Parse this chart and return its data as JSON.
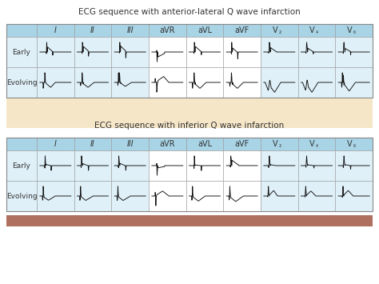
{
  "title1": "ECG sequence with anterior-lateral Q wave infarction",
  "title2": "ECG sequence with inferior Q wave infarction",
  "col_headers": [
    "I",
    "II",
    "III",
    "aVR",
    "aVL",
    "aVF",
    "V₂",
    "V₄",
    "V₆"
  ],
  "row_headers1": [
    "Early",
    "Evolving"
  ],
  "row_headers2": [
    "Early",
    "Evolving"
  ],
  "bg_color": "#ffffff",
  "header_bg": "#a8d4e6",
  "cell_bg_light": "#dff0f8",
  "cell_bg_white": "#fefefe",
  "tan_bg": "#f5e6c8",
  "brown_bar": "#b07060",
  "border_color": "#888888",
  "text_color": "#333333",
  "line_color": "#111111",
  "title_fontsize": 7.5,
  "header_fontsize": 7,
  "row_label_fontsize": 6.5
}
